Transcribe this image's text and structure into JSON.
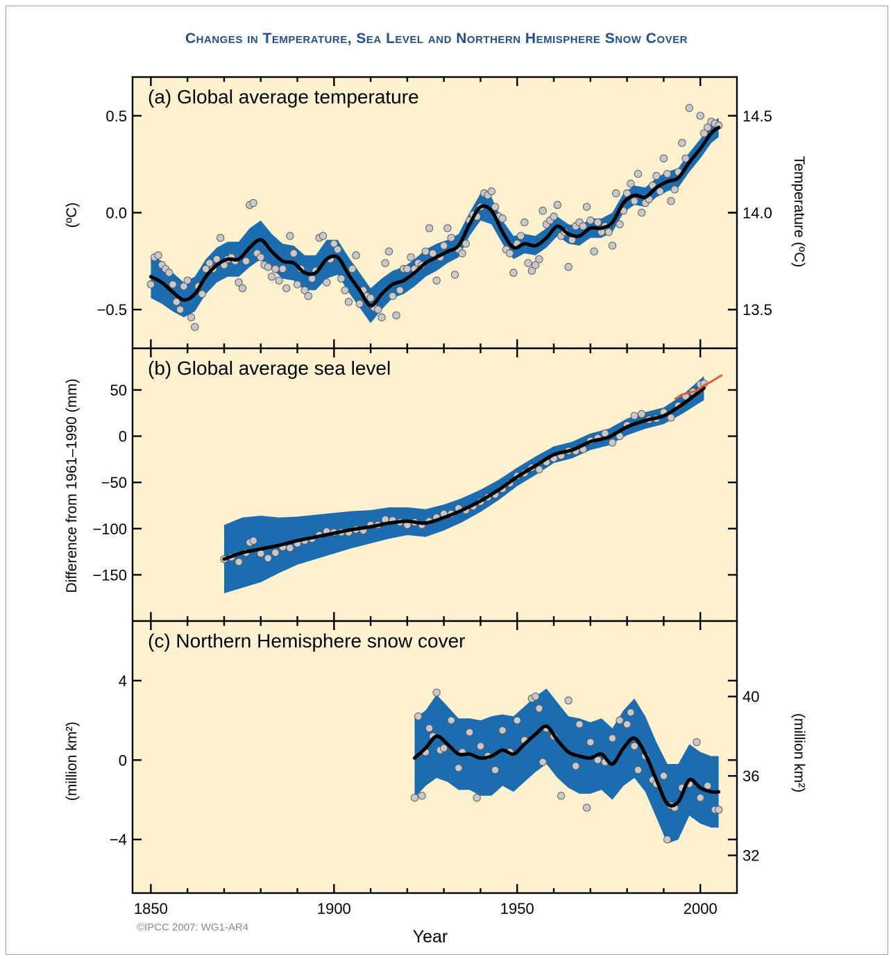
{
  "title": "Changes in Temperature, Sea Level and Northern Hemisphere Snow Cover",
  "credit": "©IPCC 2007: WG1-AR4",
  "xlabel": "Year",
  "colors": {
    "panel_bg": "#fdf1cf",
    "band": "#1b6db0",
    "smooth_line": "#000000",
    "points": "#c7c7cc",
    "satellite_line": "#e55a3c",
    "title": "#1f4f8c"
  },
  "chart_data": [
    {
      "type": "scatter",
      "title": "(a) Global average temperature",
      "ylabel_left": "(ºC)",
      "ylabel_right": "Temperature (ºC)",
      "xlim": [
        1845,
        2010
      ],
      "ylim": [
        -0.7,
        0.7
      ],
      "xticks": [
        1850,
        1900,
        1950,
        2000
      ],
      "yticks_left": [
        {
          "v": 0.5,
          "label": "0.5"
        },
        {
          "v": 0.0,
          "label": "0.0"
        },
        {
          "v": -0.5,
          "label": "−0.5"
        }
      ],
      "yticks_right": [
        {
          "v": 0.5,
          "label": "14.5"
        },
        {
          "v": 0.0,
          "label": "14.0"
        },
        {
          "v": -0.5,
          "label": "13.5"
        }
      ],
      "smooth": {
        "x": [
          1850,
          1853,
          1856,
          1859,
          1862,
          1865,
          1868,
          1871,
          1874,
          1877,
          1880,
          1883,
          1886,
          1889,
          1892,
          1895,
          1898,
          1901,
          1904,
          1907,
          1910,
          1913,
          1916,
          1919,
          1922,
          1925,
          1928,
          1931,
          1934,
          1937,
          1940,
          1943,
          1946,
          1949,
          1952,
          1955,
          1958,
          1961,
          1964,
          1967,
          1970,
          1973,
          1976,
          1979,
          1982,
          1985,
          1988,
          1991,
          1994,
          1997,
          2000,
          2003,
          2005
        ],
        "y": [
          -0.33,
          -0.36,
          -0.41,
          -0.45,
          -0.42,
          -0.33,
          -0.27,
          -0.24,
          -0.24,
          -0.18,
          -0.14,
          -0.2,
          -0.25,
          -0.26,
          -0.31,
          -0.31,
          -0.24,
          -0.23,
          -0.32,
          -0.4,
          -0.48,
          -0.42,
          -0.37,
          -0.35,
          -0.31,
          -0.26,
          -0.23,
          -0.2,
          -0.17,
          -0.06,
          0.03,
          0.01,
          -0.1,
          -0.18,
          -0.16,
          -0.17,
          -0.13,
          -0.07,
          -0.11,
          -0.12,
          -0.08,
          -0.08,
          -0.05,
          0.05,
          0.09,
          0.08,
          0.13,
          0.16,
          0.18,
          0.26,
          0.33,
          0.41,
          0.44
        ]
      },
      "band_halfwidth": [
        0.11,
        0.11,
        0.1,
        0.09,
        0.09,
        0.09,
        0.09,
        0.09,
        0.09,
        0.1,
        0.1,
        0.09,
        0.09,
        0.09,
        0.09,
        0.09,
        0.1,
        0.09,
        0.09,
        0.09,
        0.09,
        0.08,
        0.07,
        0.07,
        0.07,
        0.07,
        0.07,
        0.06,
        0.06,
        0.06,
        0.07,
        0.07,
        0.06,
        0.06,
        0.05,
        0.05,
        0.05,
        0.05,
        0.05,
        0.05,
        0.05,
        0.05,
        0.05,
        0.05,
        0.05,
        0.05,
        0.05,
        0.05,
        0.05,
        0.05,
        0.05,
        0.05,
        0.05
      ],
      "points": {
        "x": [
          1850,
          1851,
          1852,
          1853,
          1854,
          1855,
          1856,
          1857,
          1858,
          1859,
          1860,
          1861,
          1862,
          1863,
          1864,
          1865,
          1866,
          1867,
          1868,
          1869,
          1870,
          1871,
          1872,
          1873,
          1874,
          1875,
          1876,
          1877,
          1878,
          1879,
          1880,
          1881,
          1882,
          1883,
          1884,
          1885,
          1886,
          1887,
          1888,
          1889,
          1890,
          1891,
          1892,
          1893,
          1894,
          1895,
          1896,
          1897,
          1898,
          1899,
          1900,
          1901,
          1902,
          1903,
          1904,
          1905,
          1906,
          1907,
          1908,
          1909,
          1910,
          1911,
          1912,
          1913,
          1914,
          1915,
          1916,
          1917,
          1918,
          1919,
          1920,
          1921,
          1922,
          1923,
          1924,
          1925,
          1926,
          1927,
          1928,
          1929,
          1930,
          1931,
          1932,
          1933,
          1934,
          1935,
          1936,
          1937,
          1938,
          1939,
          1940,
          1941,
          1942,
          1943,
          1944,
          1945,
          1946,
          1947,
          1948,
          1949,
          1950,
          1951,
          1952,
          1953,
          1954,
          1955,
          1956,
          1957,
          1958,
          1959,
          1960,
          1961,
          1962,
          1963,
          1964,
          1965,
          1966,
          1967,
          1968,
          1969,
          1970,
          1971,
          1972,
          1973,
          1974,
          1975,
          1976,
          1977,
          1978,
          1979,
          1980,
          1981,
          1982,
          1983,
          1984,
          1985,
          1986,
          1987,
          1988,
          1989,
          1990,
          1991,
          1992,
          1993,
          1994,
          1995,
          1996,
          1997,
          2000,
          2001,
          2002,
          2003,
          2004,
          2005
        ],
        "y": [
          -0.37,
          -0.23,
          -0.22,
          -0.27,
          -0.29,
          -0.31,
          -0.37,
          -0.46,
          -0.5,
          -0.38,
          -0.35,
          -0.54,
          -0.59,
          -0.38,
          -0.42,
          -0.29,
          -0.26,
          -0.29,
          -0.24,
          -0.13,
          -0.27,
          -0.24,
          -0.23,
          -0.25,
          -0.36,
          -0.39,
          -0.25,
          0.04,
          0.05,
          -0.21,
          -0.23,
          -0.27,
          -0.28,
          -0.33,
          -0.29,
          -0.35,
          -0.29,
          -0.39,
          -0.12,
          -0.21,
          -0.37,
          -0.29,
          -0.4,
          -0.43,
          -0.34,
          -0.3,
          -0.13,
          -0.12,
          -0.36,
          -0.24,
          -0.16,
          -0.19,
          -0.34,
          -0.4,
          -0.46,
          -0.29,
          -0.22,
          -0.47,
          -0.4,
          -0.43,
          -0.44,
          -0.49,
          -0.5,
          -0.54,
          -0.26,
          -0.2,
          -0.43,
          -0.53,
          -0.4,
          -0.29,
          -0.29,
          -0.23,
          -0.29,
          -0.26,
          -0.27,
          -0.2,
          -0.08,
          -0.21,
          -0.35,
          -0.23,
          -0.17,
          -0.08,
          -0.13,
          -0.32,
          -0.19,
          -0.21,
          -0.16,
          -0.04,
          -0.01,
          -0.02,
          0.03,
          0.1,
          0.09,
          0.11,
          0.03,
          -0.02,
          -0.03,
          -0.19,
          -0.21,
          -0.31,
          -0.16,
          -0.12,
          -0.05,
          -0.26,
          -0.3,
          -0.27,
          -0.24,
          0.01,
          -0.06,
          -0.04,
          -0.02,
          0.04,
          -0.12,
          -0.1,
          -0.28,
          -0.14,
          -0.07,
          -0.05,
          -0.07,
          0.03,
          -0.04,
          -0.2,
          -0.05,
          -0.1,
          -0.07,
          -0.1,
          -0.17,
          0.1,
          -0.06,
          0.01,
          0.1,
          0.15,
          0.06,
          0.2,
          0.0,
          0.05,
          0.07,
          0.14,
          0.19,
          0.11,
          0.28,
          0.2,
          0.06,
          0.12,
          0.21,
          0.36,
          0.28,
          0.54,
          0.5,
          0.41,
          0.44,
          0.47,
          0.46,
          0.45
        ]
      }
    },
    {
      "type": "scatter",
      "title": "(b) Global average sea level",
      "ylabel_left": "Difference from 1961–1990 (mm)",
      "xlim": [
        1845,
        2010
      ],
      "ylim": [
        -200,
        95
      ],
      "xticks": [
        1850,
        1900,
        1950,
        2000
      ],
      "yticks_left": [
        {
          "v": 50,
          "label": "50"
        },
        {
          "v": 0,
          "label": "0"
        },
        {
          "v": -50,
          "label": "−50"
        },
        {
          "v": -100,
          "label": "−100"
        },
        {
          "v": -150,
          "label": "−150"
        }
      ],
      "smooth": {
        "x": [
          1870,
          1875,
          1880,
          1885,
          1890,
          1895,
          1900,
          1905,
          1910,
          1915,
          1920,
          1925,
          1930,
          1935,
          1940,
          1945,
          1950,
          1955,
          1960,
          1965,
          1970,
          1975,
          1980,
          1985,
          1990,
          1995,
          2001
        ],
        "y": [
          -133,
          -126,
          -122,
          -118,
          -113,
          -109,
          -105,
          -101,
          -98,
          -94,
          -92,
          -94,
          -88,
          -80,
          -70,
          -58,
          -44,
          -32,
          -20,
          -15,
          -6,
          -1,
          10,
          17,
          22,
          34,
          52
        ]
      },
      "band_halfwidth": [
        37,
        38,
        36,
        30,
        26,
        24,
        22,
        20,
        18,
        17,
        15,
        15,
        14,
        13,
        12,
        11,
        10,
        10,
        9,
        9,
        9,
        9,
        9,
        9,
        9,
        10,
        13
      ],
      "points": {
        "x": [
          1870,
          1872,
          1874,
          1876,
          1877,
          1878,
          1880,
          1882,
          1884,
          1886,
          1888,
          1890,
          1892,
          1894,
          1896,
          1898,
          1900,
          1902,
          1904,
          1906,
          1908,
          1910,
          1912,
          1914,
          1916,
          1918,
          1920,
          1922,
          1924,
          1926,
          1928,
          1930,
          1932,
          1934,
          1936,
          1938,
          1940,
          1942,
          1944,
          1946,
          1948,
          1950,
          1952,
          1954,
          1956,
          1958,
          1960,
          1962,
          1964,
          1966,
          1968,
          1970,
          1972,
          1974,
          1976,
          1978,
          1980,
          1982,
          1984,
          1986,
          1988,
          1990,
          1992,
          1994,
          1996,
          1998,
          2000,
          2001
        ],
        "y": [
          -133,
          -131,
          -136,
          -126,
          -115,
          -113,
          -127,
          -132,
          -126,
          -120,
          -121,
          -116,
          -113,
          -111,
          -107,
          -103,
          -104,
          -104,
          -104,
          -101,
          -102,
          -96,
          -96,
          -90,
          -91,
          -93,
          -96,
          -93,
          -96,
          -92,
          -88,
          -84,
          -84,
          -78,
          -80,
          -76,
          -71,
          -66,
          -63,
          -57,
          -51,
          -43,
          -40,
          -34,
          -36,
          -28,
          -24,
          -21,
          -16,
          -16,
          -14,
          -5,
          -2,
          3,
          -7,
          0,
          12,
          22,
          24,
          18,
          19,
          26,
          20,
          33,
          43,
          48,
          56,
          57
        ]
      },
      "satellite": {
        "x": [
          1993,
          1995,
          1997,
          1999,
          2001,
          2003,
          2005,
          2006
        ],
        "y": [
          40,
          45,
          47,
          49,
          55,
          59,
          64,
          66
        ]
      }
    },
    {
      "type": "scatter",
      "title": "(c) Northern Hemisphere snow cover",
      "ylabel_left": "(million km²)",
      "ylabel_right": "(million km²)",
      "xlim": [
        1845,
        2010
      ],
      "ylim": [
        -6.7,
        7
      ],
      "xticks": [
        1850,
        1900,
        1950,
        2000
      ],
      "yticks_left": [
        {
          "v": 4,
          "label": "4"
        },
        {
          "v": 0,
          "label": "0"
        },
        {
          "v": -4,
          "label": "−4"
        }
      ],
      "yticks_right": [
        {
          "v": 3.2,
          "label": "40"
        },
        {
          "v": -0.8,
          "label": "36"
        },
        {
          "v": -4.8,
          "label": "32"
        }
      ],
      "smooth": {
        "x": [
          1922,
          1925,
          1928,
          1931,
          1934,
          1937,
          1940,
          1943,
          1946,
          1949,
          1952,
          1955,
          1958,
          1961,
          1964,
          1967,
          1970,
          1973,
          1976,
          1979,
          1982,
          1985,
          1988,
          1991,
          1994,
          1997,
          2000,
          2003,
          2005
        ],
        "y": [
          0.1,
          0.6,
          1.2,
          0.8,
          0.3,
          0.3,
          0.1,
          0.2,
          0.5,
          0.3,
          0.8,
          1.3,
          1.7,
          1.0,
          0.4,
          0.2,
          0.1,
          0.3,
          -0.2,
          0.6,
          1.1,
          0.3,
          -1.0,
          -2.2,
          -2.1,
          -1.0,
          -1.4,
          -1.6,
          -1.6
        ]
      },
      "band_halfwidth": [
        2.0,
        1.9,
        2.1,
        1.9,
        1.8,
        1.8,
        1.9,
        2.0,
        1.8,
        1.9,
        1.9,
        1.9,
        1.9,
        1.9,
        1.8,
        1.9,
        1.8,
        1.8,
        1.8,
        1.9,
        2.0,
        1.9,
        1.9,
        2.0,
        1.9,
        1.8,
        1.8,
        1.8,
        1.8
      ],
      "points": {
        "x": [
          1922,
          1923,
          1924,
          1925,
          1926,
          1927,
          1928,
          1929,
          1930,
          1932,
          1934,
          1935,
          1937,
          1939,
          1940,
          1942,
          1944,
          1946,
          1948,
          1950,
          1952,
          1954,
          1955,
          1956,
          1957,
          1958,
          1960,
          1962,
          1964,
          1966,
          1967,
          1969,
          1970,
          1972,
          1974,
          1976,
          1978,
          1980,
          1981,
          1982,
          1983,
          1985,
          1987,
          1988,
          1990,
          1991,
          1992,
          1993,
          1995,
          1997,
          1999,
          2000,
          2002,
          2004,
          2005
        ],
        "y": [
          -1.9,
          2.2,
          -1.8,
          0.4,
          1.6,
          1.2,
          3.4,
          0.5,
          0.6,
          2.0,
          -0.4,
          0.4,
          1.4,
          -1.9,
          0.7,
          0.2,
          -0.5,
          1.5,
          0.4,
          2.0,
          1.0,
          3.1,
          3.2,
          2.6,
          -0.1,
          1.6,
          1.2,
          -1.8,
          3.0,
          -0.3,
          1.8,
          -2.4,
          0.9,
          0.0,
          -0.1,
          1.1,
          2.0,
          1.8,
          2.4,
          0.7,
          -0.5,
          0.2,
          -1.0,
          -1.2,
          -0.8,
          -4.0,
          -2.3,
          -2.4,
          -1.4,
          -1.2,
          0.9,
          -1.9,
          -1.3,
          -2.5,
          -2.5
        ]
      }
    }
  ]
}
